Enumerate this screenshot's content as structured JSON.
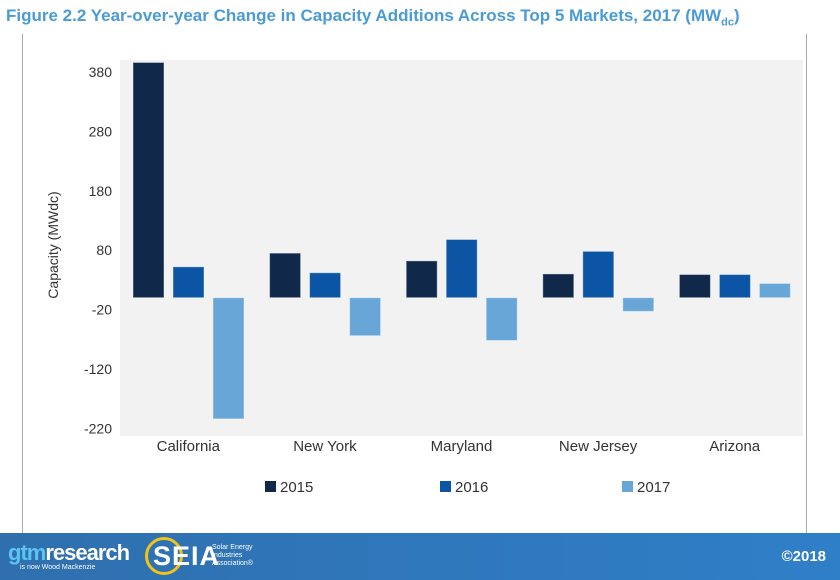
{
  "title_main": "Figure 2.2 Year-over-year Change in Capacity Additions Across Top 5 Markets, 2017 (MW",
  "title_sub": "dc",
  "title_end": ")",
  "chart_data": {
    "type": "bar",
    "categories": [
      "California",
      "New York",
      "Maryland",
      "New Jersey",
      "Arizona"
    ],
    "series": [
      {
        "name": "2015",
        "color": "#10294a",
        "values": [
          396,
          75,
          62,
          40,
          39
        ]
      },
      {
        "name": "2016",
        "color": "#0c54a4",
        "values": [
          52,
          42,
          98,
          78,
          39
        ]
      },
      {
        "name": "2017",
        "color": "#68a6d8",
        "values": [
          -204,
          -64,
          -72,
          -23,
          24
        ]
      }
    ],
    "ylabel": "Capacity (MWdc)",
    "yticks": [
      380,
      280,
      180,
      80,
      -20,
      -120,
      -220
    ],
    "ylim": [
      -220,
      400
    ],
    "grid": false,
    "legend": "bottom",
    "background": "#f2f2f2"
  },
  "footer": {
    "brand_a": "gtm",
    "brand_b": "research",
    "brand_sub": "is now Wood Mackenzie",
    "seia": "SEIA",
    "seia_sub": "Solar Energy Industries Association®",
    "copyright": "©2018"
  }
}
